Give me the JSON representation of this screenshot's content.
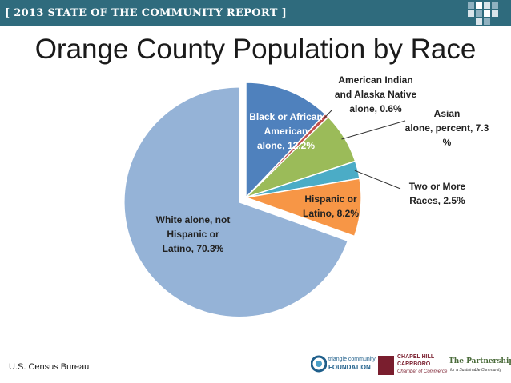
{
  "header": {
    "banner_text": "[ 2013 STATE OF THE COMMUNITY REPORT ]",
    "banner_color": "#2f6b7d"
  },
  "title": "Orange County Population by Race",
  "source": "U.S. Census Bureau",
  "chart_data": {
    "type": "pie",
    "title": "Orange County Population by Race",
    "unit": "%",
    "start_angle_deg": 0,
    "direction": "clockwise",
    "slices": [
      {
        "label": "Black or African American alone, 12.2%",
        "value": 12.2,
        "color": "#4f81bd",
        "exploded": false
      },
      {
        "label": "American Indian and Alaska Native alone, 0.6%",
        "value": 0.6,
        "color": "#c0504d",
        "exploded": false
      },
      {
        "label": "Asian alone, percent, 7.3 %",
        "value": 7.3,
        "color": "#9bbb59",
        "exploded": false
      },
      {
        "label": "Two or More Races, 2.5%",
        "value": 2.5,
        "color": "#4bacc6",
        "exploded": false
      },
      {
        "label": "Hispanic or Latino, 8.2%",
        "value": 8.2,
        "color": "#f79646",
        "exploded": false
      },
      {
        "label": "White alone, not Hispanic or Latino, 70.3%",
        "value": 70.3,
        "color": "#95b3d7",
        "exploded": true
      }
    ],
    "labels": {
      "black": [
        "Black or African",
        "American",
        "alone, 12.2%"
      ],
      "amind": [
        "American Indian",
        "and Alaska Native",
        "alone, 0.6%"
      ],
      "asian": [
        "Asian",
        "alone, percent, 7.3",
        "%"
      ],
      "twoormore": [
        "Two or More",
        "Races, 2.5%"
      ],
      "hispanic": [
        "Hispanic or",
        "Latino, 8.2%"
      ],
      "white": [
        "White alone, not",
        "Hispanic or",
        "Latino, 70.3%"
      ]
    }
  },
  "logos": {
    "tcf": {
      "line1": "triangle community",
      "line2": "FOUNDATION"
    },
    "ch": {
      "line1": "CHAPEL HILL",
      "line2": "CARRBORO",
      "line3": "Chamber of Commerce"
    },
    "partnership": {
      "line1": "The Partnership",
      "line2": "for a Sustainable Community"
    }
  }
}
